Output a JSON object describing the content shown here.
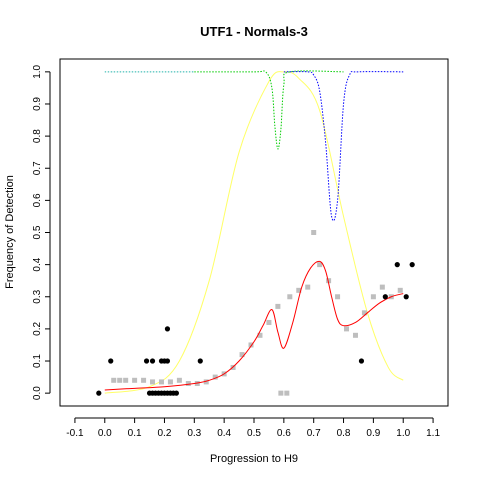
{
  "chart_data": {
    "type": "scatter",
    "title": "UTF1 - Normals-3",
    "xlabel": "Progression to H9",
    "ylabel": "Frequency of Detection",
    "xlim": [
      -0.15,
      1.15
    ],
    "ylim": [
      -0.04,
      1.04
    ],
    "x_ticks": [
      -0.1,
      0.0,
      0.1,
      0.2,
      0.3,
      0.4,
      0.5,
      0.6,
      0.7,
      0.8,
      0.9,
      1.0,
      1.1
    ],
    "x_tick_labels": [
      "-0.1",
      "0.0",
      "0.1",
      "0.2",
      "0.3",
      "0.4",
      "0.5",
      "0.6",
      "0.7",
      "0.8",
      "0.9",
      "1.0",
      "1.1"
    ],
    "y_ticks": [
      0.0,
      0.1,
      0.2,
      0.3,
      0.4,
      0.5,
      0.6,
      0.7,
      0.8,
      0.9,
      1.0
    ],
    "y_tick_labels": [
      "0.0",
      "0.1",
      "0.2",
      "0.3",
      "0.4",
      "0.5",
      "0.6",
      "0.7",
      "0.8",
      "0.9",
      "1.0"
    ],
    "grid": false,
    "colors": {
      "sample_points": "#000000",
      "smoothed_points": "#bebebe",
      "fit_curve": "#ff0000",
      "envelope_curve": "#ffff66",
      "green_curve": "#00cc00",
      "blue_curve": "#0000ff",
      "teal_curve": "#20b2aa"
    },
    "series": [
      {
        "values": [
          [
            -0.02,
            0.0
          ],
          [
            0.02,
            0.1
          ],
          [
            0.14,
            0.1
          ],
          [
            0.16,
            0.1
          ],
          [
            0.19,
            0.1
          ],
          [
            0.2,
            0.1
          ],
          [
            0.21,
            0.1
          ],
          [
            0.21,
            0.2
          ],
          [
            0.15,
            0.0
          ],
          [
            0.16,
            0.0
          ],
          [
            0.17,
            0.0
          ],
          [
            0.18,
            0.0
          ],
          [
            0.19,
            0.0
          ],
          [
            0.2,
            0.0
          ],
          [
            0.21,
            0.0
          ],
          [
            0.22,
            0.0
          ],
          [
            0.23,
            0.0
          ],
          [
            0.24,
            0.0
          ],
          [
            0.32,
            0.1
          ],
          [
            0.86,
            0.1
          ],
          [
            0.94,
            0.3
          ],
          [
            0.98,
            0.4
          ],
          [
            1.01,
            0.3
          ],
          [
            1.03,
            0.4
          ]
        ]
      },
      {
        "values": [
          [
            0.03,
            0.04
          ],
          [
            0.05,
            0.04
          ],
          [
            0.07,
            0.04
          ],
          [
            0.1,
            0.04
          ],
          [
            0.13,
            0.04
          ],
          [
            0.16,
            0.035
          ],
          [
            0.19,
            0.035
          ],
          [
            0.22,
            0.035
          ],
          [
            0.25,
            0.04
          ],
          [
            0.28,
            0.03
          ],
          [
            0.31,
            0.03
          ],
          [
            0.34,
            0.035
          ],
          [
            0.37,
            0.05
          ],
          [
            0.4,
            0.06
          ],
          [
            0.43,
            0.08
          ],
          [
            0.46,
            0.12
          ],
          [
            0.49,
            0.15
          ],
          [
            0.52,
            0.18
          ],
          [
            0.55,
            0.22
          ],
          [
            0.58,
            0.27
          ],
          [
            0.59,
            0.0
          ],
          [
            0.61,
            0.0
          ],
          [
            0.62,
            0.3
          ],
          [
            0.65,
            0.32
          ],
          [
            0.68,
            0.33
          ],
          [
            0.7,
            0.5
          ],
          [
            0.72,
            0.4
          ],
          [
            0.75,
            0.35
          ],
          [
            0.78,
            0.3
          ],
          [
            0.81,
            0.2
          ],
          [
            0.84,
            0.18
          ],
          [
            0.87,
            0.25
          ],
          [
            0.9,
            0.3
          ],
          [
            0.93,
            0.33
          ],
          [
            0.96,
            0.3
          ],
          [
            0.99,
            0.32
          ]
        ]
      },
      {
        "values": [
          [
            0.0,
            0.01
          ],
          [
            0.1,
            0.015
          ],
          [
            0.2,
            0.02
          ],
          [
            0.3,
            0.03
          ],
          [
            0.35,
            0.04
          ],
          [
            0.4,
            0.06
          ],
          [
            0.45,
            0.1
          ],
          [
            0.5,
            0.16
          ],
          [
            0.53,
            0.21
          ],
          [
            0.56,
            0.26
          ],
          [
            0.58,
            0.19
          ],
          [
            0.6,
            0.14
          ],
          [
            0.63,
            0.22
          ],
          [
            0.66,
            0.33
          ],
          [
            0.69,
            0.39
          ],
          [
            0.72,
            0.41
          ],
          [
            0.74,
            0.38
          ],
          [
            0.76,
            0.3
          ],
          [
            0.78,
            0.23
          ],
          [
            0.8,
            0.21
          ],
          [
            0.84,
            0.22
          ],
          [
            0.88,
            0.25
          ],
          [
            0.92,
            0.28
          ],
          [
            0.96,
            0.3
          ],
          [
            1.0,
            0.31
          ]
        ]
      },
      {
        "values": [
          [
            0.0,
            0.0
          ],
          [
            0.15,
            0.02
          ],
          [
            0.25,
            0.1
          ],
          [
            0.35,
            0.35
          ],
          [
            0.45,
            0.75
          ],
          [
            0.55,
            0.97
          ],
          [
            0.6,
            1.0
          ],
          [
            0.65,
            0.98
          ],
          [
            0.72,
            0.88
          ],
          [
            0.8,
            0.55
          ],
          [
            0.88,
            0.25
          ],
          [
            0.95,
            0.08
          ],
          [
            1.0,
            0.04
          ]
        ]
      },
      {
        "values": [
          [
            0.3,
            1.0
          ],
          [
            0.5,
            1.0
          ],
          [
            0.54,
            0.999
          ],
          [
            0.56,
            0.95
          ],
          [
            0.57,
            0.83
          ],
          [
            0.58,
            0.76
          ],
          [
            0.59,
            0.82
          ],
          [
            0.6,
            0.96
          ],
          [
            0.62,
            1.0
          ],
          [
            0.8,
            1.0
          ]
        ]
      },
      {
        "values": [
          [
            0.6,
            1.0
          ],
          [
            0.68,
            1.0
          ],
          [
            0.7,
            0.99
          ],
          [
            0.72,
            0.94
          ],
          [
            0.74,
            0.78
          ],
          [
            0.76,
            0.55
          ],
          [
            0.78,
            0.6
          ],
          [
            0.8,
            0.9
          ],
          [
            0.82,
            0.99
          ],
          [
            0.85,
            1.0
          ],
          [
            1.0,
            1.0
          ]
        ]
      },
      {
        "values": [
          [
            0.0,
            1.0
          ],
          [
            0.3,
            1.0
          ]
        ]
      }
    ]
  }
}
